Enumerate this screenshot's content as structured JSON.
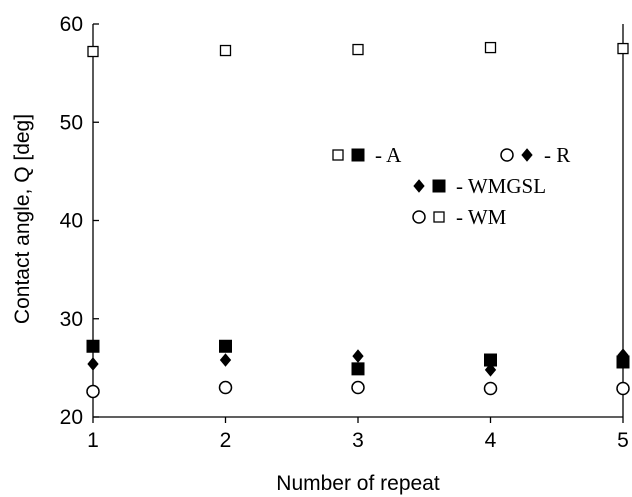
{
  "chart_data": {
    "type": "scatter",
    "xlabel": "Number of repeat",
    "ylabel": "Contact angle, Q [deg]",
    "xlim": [
      1,
      5
    ],
    "ylim": [
      20,
      60
    ],
    "xticks": [
      "1",
      "2",
      "3",
      "4",
      "5"
    ],
    "yticks": [
      "20",
      "30",
      "40",
      "50",
      "60"
    ],
    "grid": false,
    "series": [
      {
        "marker": "open-square",
        "x": [
          1,
          2,
          3,
          4,
          5
        ],
        "values": [
          57.2,
          57.3,
          57.4,
          57.6,
          57.5
        ]
      },
      {
        "marker": "filled-square",
        "x": [
          1,
          2,
          3,
          4,
          5
        ],
        "values": [
          27.2,
          27.2,
          24.9,
          25.8,
          25.6
        ]
      },
      {
        "marker": "filled-diamond",
        "x": [
          1,
          2,
          3,
          4,
          5
        ],
        "values": [
          25.4,
          25.8,
          26.2,
          24.8,
          26.3
        ]
      },
      {
        "marker": "open-circle",
        "x": [
          1,
          2,
          3,
          4,
          5
        ],
        "values": [
          22.6,
          23.0,
          23.0,
          22.9,
          22.9
        ]
      }
    ],
    "legend": [
      {
        "label": "- A",
        "markers": [
          "open-square",
          "filled-square"
        ],
        "position": "upper-left"
      },
      {
        "label": "- R",
        "markers": [
          "open-circle",
          "filled-diamond"
        ],
        "position": "upper-right"
      },
      {
        "label": "- WMGSL",
        "markers": [
          "filled-diamond",
          "filled-square"
        ],
        "position": "middle"
      },
      {
        "label": "- WM",
        "markers": [
          "open-circle",
          "open-square"
        ],
        "position": "lower"
      }
    ]
  }
}
